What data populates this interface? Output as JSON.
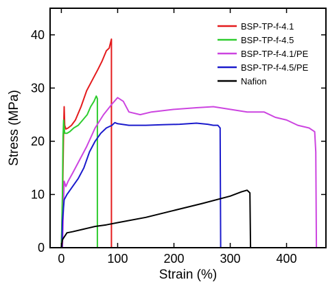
{
  "chart_data": {
    "type": "line",
    "xlabel": "Strain (%)",
    "ylabel": "Stress (MPa)",
    "xlim": [
      -20,
      470
    ],
    "ylim": [
      0,
      45
    ],
    "xticks": [
      0,
      100,
      200,
      300,
      400
    ],
    "yticks": [
      0,
      10,
      20,
      30,
      40
    ],
    "legend_position": "top-right",
    "series": [
      {
        "name": "BSP-TP-f-4.1",
        "color": "#e41a1c",
        "points": [
          [
            0,
            0
          ],
          [
            2,
            8
          ],
          [
            4,
            22
          ],
          [
            5,
            26.5
          ],
          [
            6,
            23
          ],
          [
            8,
            22.3
          ],
          [
            12,
            22.5
          ],
          [
            18,
            23
          ],
          [
            25,
            24
          ],
          [
            35,
            26.5
          ],
          [
            45,
            29.5
          ],
          [
            55,
            31.5
          ],
          [
            65,
            33.5
          ],
          [
            72,
            35
          ],
          [
            80,
            37
          ],
          [
            85,
            37.5
          ],
          [
            88,
            38.8
          ],
          [
            89,
            39.2
          ],
          [
            89,
            0
          ]
        ]
      },
      {
        "name": "BSP-TP-f-4.5",
        "color": "#2ecc2e",
        "points": [
          [
            0,
            0
          ],
          [
            2,
            10
          ],
          [
            3,
            21
          ],
          [
            4,
            24
          ],
          [
            6,
            21.5
          ],
          [
            10,
            21.5
          ],
          [
            15,
            21.8
          ],
          [
            22,
            22.5
          ],
          [
            30,
            23
          ],
          [
            38,
            24
          ],
          [
            46,
            25
          ],
          [
            52,
            26.5
          ],
          [
            58,
            27.5
          ],
          [
            62,
            28.5
          ],
          [
            64,
            28
          ],
          [
            64,
            0
          ]
        ]
      },
      {
        "name": "BSP-TP-f-4.1/PE",
        "color": "#cc44e0",
        "points": [
          [
            2,
            0
          ],
          [
            3,
            5
          ],
          [
            5,
            12.5
          ],
          [
            8,
            11.5
          ],
          [
            12,
            12.5
          ],
          [
            20,
            14
          ],
          [
            30,
            16
          ],
          [
            45,
            19
          ],
          [
            60,
            22.5
          ],
          [
            75,
            25
          ],
          [
            90,
            27
          ],
          [
            100,
            28.2
          ],
          [
            110,
            27.5
          ],
          [
            120,
            25.5
          ],
          [
            140,
            25
          ],
          [
            160,
            25.5
          ],
          [
            200,
            26
          ],
          [
            240,
            26.3
          ],
          [
            270,
            26.5
          ],
          [
            300,
            26
          ],
          [
            330,
            25.5
          ],
          [
            360,
            25.5
          ],
          [
            380,
            24.5
          ],
          [
            400,
            24
          ],
          [
            420,
            23
          ],
          [
            440,
            22.5
          ],
          [
            450,
            21.8
          ],
          [
            452,
            18
          ],
          [
            453,
            0
          ]
        ]
      },
      {
        "name": "BSP-TP-f-4.5/PE",
        "color": "#1a1acc",
        "points": [
          [
            1,
            0
          ],
          [
            2,
            5
          ],
          [
            5,
            9
          ],
          [
            10,
            10
          ],
          [
            20,
            11.5
          ],
          [
            30,
            13
          ],
          [
            40,
            15
          ],
          [
            50,
            18
          ],
          [
            60,
            20
          ],
          [
            70,
            21.5
          ],
          [
            80,
            22.5
          ],
          [
            90,
            23
          ],
          [
            95,
            23.5
          ],
          [
            100,
            23.3
          ],
          [
            120,
            23
          ],
          [
            150,
            23
          ],
          [
            180,
            23.1
          ],
          [
            210,
            23.2
          ],
          [
            240,
            23.4
          ],
          [
            260,
            23.2
          ],
          [
            270,
            23
          ],
          [
            278,
            23
          ],
          [
            282,
            22.5
          ],
          [
            283,
            0
          ]
        ]
      },
      {
        "name": "Nafion",
        "color": "#000000",
        "points": [
          [
            0,
            0
          ],
          [
            2,
            1.5
          ],
          [
            5,
            2
          ],
          [
            10,
            2.8
          ],
          [
            20,
            3
          ],
          [
            40,
            3.5
          ],
          [
            60,
            4
          ],
          [
            80,
            4.3
          ],
          [
            100,
            4.7
          ],
          [
            150,
            5.7
          ],
          [
            200,
            7
          ],
          [
            250,
            8.3
          ],
          [
            300,
            9.7
          ],
          [
            320,
            10.5
          ],
          [
            330,
            10.8
          ],
          [
            335,
            10.3
          ],
          [
            336,
            0
          ]
        ]
      }
    ]
  }
}
